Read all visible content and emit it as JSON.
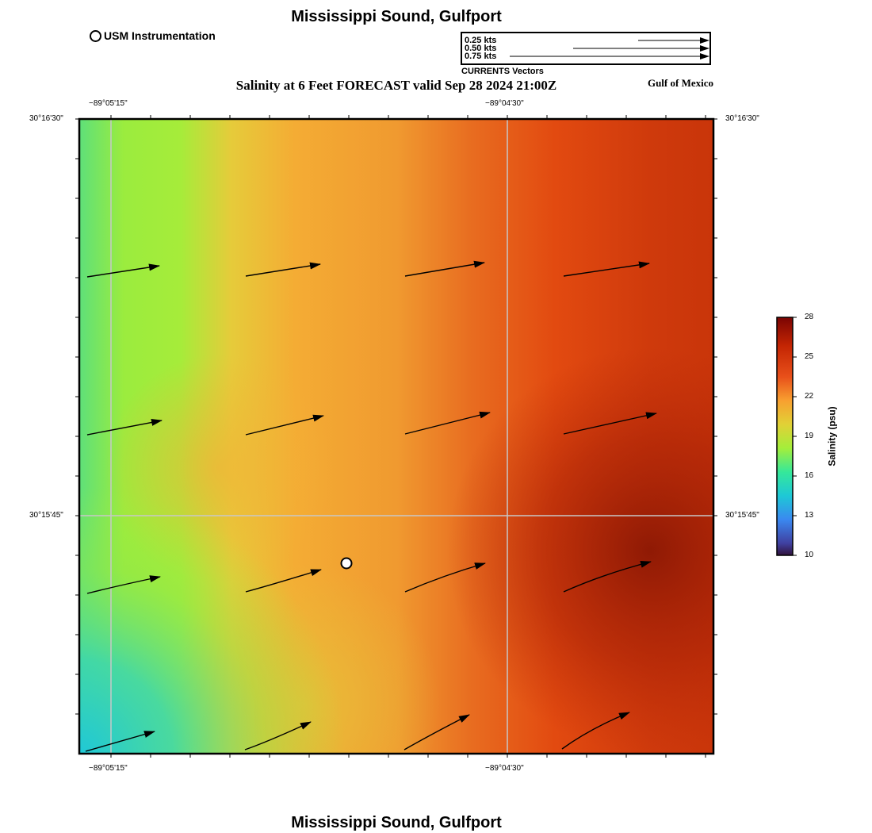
{
  "title": "Mississippi Sound, Gulfport",
  "bottom_title": "Mississippi Sound, Gulfport",
  "subtitle": "Salinity at 6 Feet FORECAST valid Sep 28 2024 21:00Z",
  "region_label": "Gulf of Mexico",
  "station_legend": "USM Instrumentation",
  "vector_legend": {
    "caption": "CURRENTS Vectors",
    "entries": [
      "0.25 kts",
      "0.50 kts",
      "0.75 kts"
    ]
  },
  "axes": {
    "lon_labels": [
      "−89°05'15\"",
      "−89°04'30\""
    ],
    "lat_labels": [
      "30°16'30\"",
      "30°15'45\""
    ]
  },
  "colorbar": {
    "title": "Salinity (psu)",
    "ticks": [
      "28",
      "25",
      "22",
      "19",
      "16",
      "13",
      "10"
    ],
    "min": 10,
    "max": 28
  },
  "colors": {
    "frame": "#000000",
    "grid": "#c8c8c8",
    "station_marker": "#ffffff"
  }
}
